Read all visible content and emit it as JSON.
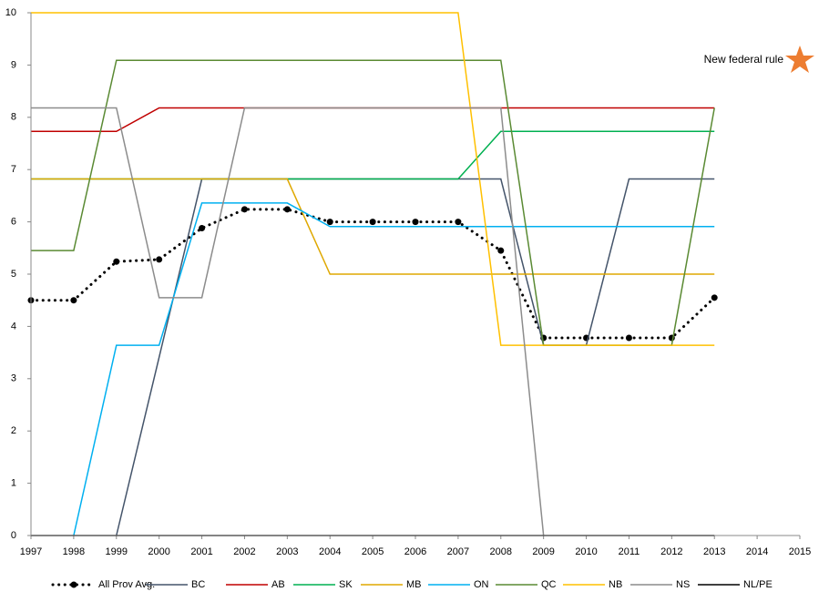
{
  "chart_data": {
    "type": "line",
    "annotation": "New federal rule",
    "x": [
      1997,
      1998,
      1999,
      2000,
      2001,
      2002,
      2003,
      2004,
      2005,
      2006,
      2007,
      2008,
      2009,
      2010,
      2011,
      2012,
      2013
    ],
    "xlim": [
      1997,
      2015
    ],
    "xticks": [
      1997,
      1998,
      1999,
      2000,
      2001,
      2002,
      2003,
      2004,
      2005,
      2006,
      2007,
      2008,
      2009,
      2010,
      2011,
      2012,
      2013,
      2014,
      2015
    ],
    "ylim": [
      0,
      10
    ],
    "yticks": [
      0,
      1,
      2,
      3,
      4,
      5,
      6,
      7,
      8,
      9,
      10
    ],
    "grid": false,
    "legend": "bottom",
    "series": [
      {
        "name": "All Prov Avg.",
        "color": "#000000",
        "style": "dotted",
        "markers": true,
        "values": [
          4.5,
          4.5,
          5.24,
          5.28,
          5.88,
          6.24,
          6.24,
          6.0,
          6.0,
          6.0,
          6.0,
          5.45,
          3.78,
          3.78,
          3.78,
          3.78,
          4.55
        ]
      },
      {
        "name": "BC",
        "color": "#44546a",
        "values": [
          null,
          null,
          0,
          3.41,
          6.82,
          6.82,
          6.82,
          6.82,
          6.82,
          6.82,
          6.82,
          6.82,
          3.64,
          3.64,
          6.82,
          6.82,
          6.82
        ]
      },
      {
        "name": "AB",
        "color": "#c00000",
        "values": [
          7.73,
          7.73,
          7.73,
          8.18,
          8.18,
          8.18,
          8.18,
          8.18,
          8.18,
          8.18,
          8.18,
          8.18,
          8.18,
          8.18,
          8.18,
          8.18,
          8.18
        ]
      },
      {
        "name": "SK",
        "color": "#00b050",
        "values": [
          6.82,
          6.82,
          6.82,
          6.82,
          6.82,
          6.82,
          6.82,
          6.82,
          6.82,
          6.82,
          6.82,
          7.73,
          7.73,
          7.73,
          7.73,
          7.73,
          7.73
        ]
      },
      {
        "name": "MB",
        "color": "#dfa800",
        "values": [
          6.82,
          6.82,
          6.82,
          6.82,
          6.82,
          6.82,
          6.82,
          5.0,
          5.0,
          5.0,
          5.0,
          5.0,
          5.0,
          5.0,
          5.0,
          5.0,
          5.0
        ]
      },
      {
        "name": "ON",
        "color": "#00b0f0",
        "values": [
          null,
          0,
          3.64,
          3.64,
          6.36,
          6.36,
          6.36,
          5.91,
          5.91,
          5.91,
          5.91,
          5.91,
          5.91,
          5.91,
          5.91,
          5.91,
          5.91
        ]
      },
      {
        "name": "QC",
        "color": "#5a8a33",
        "values": [
          5.45,
          5.45,
          9.09,
          9.09,
          9.09,
          9.09,
          9.09,
          9.09,
          9.09,
          9.09,
          9.09,
          9.09,
          3.64,
          3.64,
          3.64,
          3.64,
          8.18
        ]
      },
      {
        "name": "NB",
        "color": "#ffc000",
        "values": [
          10,
          10,
          10,
          10,
          10,
          10,
          10,
          10,
          10,
          10,
          10,
          3.64,
          3.64,
          3.64,
          3.64,
          3.64,
          3.64
        ]
      },
      {
        "name": "NS",
        "color": "#8c8c8c",
        "values": [
          8.18,
          8.18,
          8.18,
          4.55,
          4.55,
          8.18,
          8.18,
          8.18,
          8.18,
          8.18,
          8.18,
          8.18,
          0,
          null,
          null,
          null,
          null
        ]
      },
      {
        "name": "NL/PE",
        "color": "#000000",
        "values": [
          0,
          0,
          0,
          0,
          0,
          0,
          0,
          0,
          0,
          0,
          0,
          0,
          0,
          0,
          0,
          0,
          0
        ]
      }
    ]
  }
}
